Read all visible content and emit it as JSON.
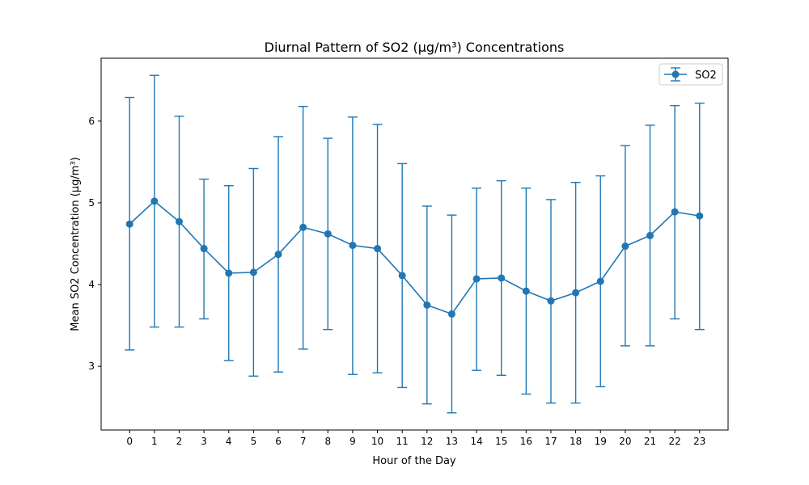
{
  "chart_data": {
    "type": "line",
    "title": "Diurnal Pattern of SO2 (µg/m³) Concentrations",
    "xlabel": "Hour of the Day",
    "ylabel": "Mean SO2 Concentration (µg/m³)",
    "x": [
      0,
      1,
      2,
      3,
      4,
      5,
      6,
      7,
      8,
      9,
      10,
      11,
      12,
      13,
      14,
      15,
      16,
      17,
      18,
      19,
      20,
      21,
      22,
      23
    ],
    "xlim": [
      -1.15,
      24.15
    ],
    "ylim": [
      2.22,
      6.77
    ],
    "y_ticks": [
      3,
      4,
      5,
      6
    ],
    "grid": false,
    "legend_position": "top-right",
    "series": [
      {
        "name": "SO2",
        "color": "#1f77b4",
        "values": [
          4.74,
          5.02,
          4.77,
          4.44,
          4.14,
          4.15,
          4.37,
          4.7,
          4.62,
          4.48,
          4.44,
          4.11,
          3.75,
          3.64,
          4.07,
          4.08,
          3.92,
          3.8,
          3.9,
          4.04,
          4.47,
          4.6,
          4.89,
          4.84
        ],
        "error_low": [
          3.2,
          3.48,
          3.48,
          3.58,
          3.07,
          2.88,
          2.93,
          3.21,
          3.45,
          2.9,
          2.92,
          2.74,
          2.54,
          2.43,
          2.95,
          2.89,
          2.66,
          2.55,
          2.55,
          2.75,
          3.25,
          3.25,
          3.58,
          3.45
        ],
        "error_high": [
          6.29,
          6.56,
          6.06,
          5.29,
          5.21,
          5.42,
          5.81,
          6.18,
          5.79,
          6.05,
          5.96,
          5.48,
          4.96,
          4.85,
          5.18,
          5.27,
          5.18,
          5.04,
          5.25,
          5.33,
          5.7,
          5.95,
          6.19,
          6.22
        ]
      }
    ]
  }
}
